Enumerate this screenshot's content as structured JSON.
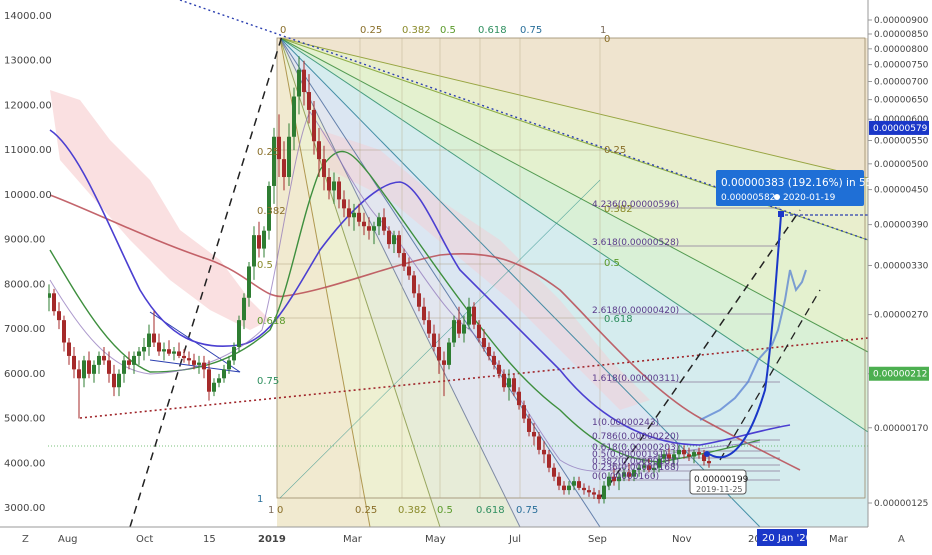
{
  "chart_data": {
    "type": "line",
    "title": "",
    "xlabel": "",
    "ylabel": "",
    "left_axis": {
      "ylim": [
        2700,
        14300
      ],
      "ticks": [
        "14000.00",
        "13000.00",
        "12000.00",
        "11000.00",
        "10000.00",
        "9000.00",
        "8000.00",
        "7000.00",
        "6000.00",
        "5000.00",
        "4000.00",
        "3000.00"
      ]
    },
    "right_axis": {
      "scale": "log",
      "ylim": [
        1.12e-06,
        9.3e-06
      ],
      "ticks": [
        "0.00000900",
        "0.00000850",
        "0.00000800",
        "0.00000750",
        "0.00000700",
        "0.00000650",
        "0.00000600",
        "0.00000550",
        "0.00000500",
        "0.00000450",
        "0.00000390",
        "0.00000330",
        "0.00000270",
        "0.00000212",
        "0.00000170",
        "0.00000125"
      ],
      "price_label": "0.00000579",
      "current_label": "0.00000212"
    },
    "x_ticks": [
      "Aug",
      "Oct",
      "15",
      "2019",
      "Mar",
      "May",
      "Jul",
      "Sep",
      "Nov",
      "20",
      "Mar"
    ],
    "x_highlight": "20 Jan '20",
    "fib_top_labels": [
      "0",
      "0.25",
      "0.382",
      "0.5",
      "0.618",
      "0.75",
      "1"
    ],
    "fib_bottom_labels": [
      "0",
      "0.25",
      "0.382",
      "0.5",
      "0.618",
      "0.75",
      "1"
    ],
    "fib_right_labels": [
      "0",
      "0.25",
      "0.382",
      "0.5",
      "0.618"
    ],
    "fib_left_labels": [
      "0.25",
      "0.382",
      "0.5",
      "0.618",
      "0.75",
      "1"
    ],
    "fib_ext_labels": [
      "4.236(0.00000596)",
      "3.618(0.00000528)",
      "2.618(0.00000420)",
      "1.618(0.00000311)",
      "1(0.00000243)",
      "0.786(0.00000220)",
      "0.618(0.00000203)",
      "0.5(0.00000191)",
      "0.382(0.00000181)",
      "0.236(0.00000168)",
      "0(0.00000160)"
    ],
    "measure_label": {
      "line1": "0.00000383 (192.16%) in 55d",
      "line2": "0.00000582",
      "line3": "2020-01-19"
    },
    "low_label": {
      "value": "0.00000199",
      "date": "2019-11-25"
    },
    "candles": [
      [
        44,
        7900,
        7950,
        7600,
        7700
      ],
      [
        49,
        7700,
        8000,
        7400,
        7800
      ],
      [
        54,
        7800,
        7900,
        7300,
        7400
      ],
      [
        59,
        7400,
        7600,
        7000,
        7200
      ],
      [
        64,
        7200,
        7300,
        6500,
        6700
      ],
      [
        69,
        6700,
        6800,
        6200,
        6400
      ],
      [
        74,
        6400,
        6600,
        5900,
        6100
      ],
      [
        79,
        6100,
        6300,
        5000,
        5900
      ],
      [
        84,
        5900,
        6400,
        5700,
        6300
      ],
      [
        89,
        6300,
        6500,
        5900,
        6000
      ],
      [
        94,
        6000,
        6300,
        5800,
        6200
      ],
      [
        99,
        6200,
        6500,
        6000,
        6400
      ],
      [
        104,
        6400,
        6600,
        6200,
        6300
      ],
      [
        109,
        6300,
        6500,
        5800,
        6000
      ],
      [
        114,
        6000,
        6200,
        5500,
        5700
      ],
      [
        119,
        5700,
        6100,
        5500,
        6000
      ],
      [
        124,
        6000,
        6400,
        5800,
        6300
      ],
      [
        129,
        6300,
        6500,
        6100,
        6200
      ],
      [
        134,
        6200,
        6500,
        6000,
        6400
      ],
      [
        139,
        6400,
        6600,
        6200,
        6500
      ],
      [
        144,
        6500,
        6800,
        6300,
        6600
      ],
      [
        149,
        6600,
        7100,
        6400,
        6900
      ],
      [
        154,
        6900,
        7400,
        6600,
        6700
      ],
      [
        159,
        6700,
        6900,
        6400,
        6500
      ],
      [
        164,
        6500,
        6700,
        6300,
        6550
      ],
      [
        169,
        6550,
        6750,
        6400,
        6450
      ],
      [
        174,
        6450,
        6600,
        6300,
        6500
      ],
      [
        179,
        6500,
        6700,
        6350,
        6400
      ],
      [
        184,
        6400,
        6550,
        6250,
        6350
      ],
      [
        189,
        6350,
        6500,
        6200,
        6300
      ],
      [
        194,
        6300,
        6450,
        6100,
        6200
      ],
      [
        199,
        6200,
        6400,
        6000,
        6250
      ],
      [
        204,
        6250,
        6400,
        5900,
        6100
      ],
      [
        209,
        6100,
        6300,
        5400,
        5600
      ],
      [
        214,
        5600,
        5900,
        5500,
        5800
      ],
      [
        219,
        5800,
        6000,
        5700,
        5900
      ],
      [
        224,
        5900,
        6200,
        5800,
        6100
      ],
      [
        229,
        6100,
        6400,
        6000,
        6300
      ],
      [
        234,
        6300,
        6700,
        6200,
        6600
      ],
      [
        239,
        6600,
        7300,
        6500,
        7200
      ],
      [
        244,
        7200,
        7800,
        7000,
        7700
      ],
      [
        249,
        7700,
        8500,
        7500,
        8400
      ],
      [
        254,
        8400,
        9300,
        8100,
        9100
      ],
      [
        259,
        9100,
        9400,
        8600,
        8800
      ],
      [
        264,
        8800,
        9300,
        8600,
        9200
      ],
      [
        269,
        9200,
        10300,
        9000,
        10200
      ],
      [
        274,
        10200,
        11500,
        9800,
        11300
      ],
      [
        279,
        11300,
        11800,
        10400,
        10800
      ],
      [
        284,
        10800,
        11200,
        10100,
        10400
      ],
      [
        289,
        10400,
        11600,
        10200,
        11300
      ],
      [
        294,
        11300,
        12400,
        11000,
        12200
      ],
      [
        299,
        12200,
        13100,
        11800,
        12800
      ],
      [
        304,
        12800,
        13000,
        12000,
        12300
      ],
      [
        309,
        12300,
        12700,
        11600,
        11900
      ],
      [
        314,
        11900,
        12100,
        10900,
        11200
      ],
      [
        319,
        11200,
        11500,
        10400,
        10800
      ],
      [
        324,
        10800,
        11100,
        10100,
        10400
      ],
      [
        329,
        10400,
        10600,
        9900,
        10100
      ],
      [
        334,
        10100,
        10500,
        9800,
        10300
      ],
      [
        339,
        10300,
        10400,
        9700,
        9900
      ],
      [
        344,
        9900,
        10100,
        9500,
        9700
      ],
      [
        349,
        9700,
        9900,
        9300,
        9500
      ],
      [
        354,
        9500,
        9800,
        9200,
        9600
      ],
      [
        359,
        9600,
        9800,
        9300,
        9400
      ],
      [
        364,
        9400,
        9600,
        9100,
        9300
      ],
      [
        369,
        9300,
        9500,
        9000,
        9200
      ],
      [
        374,
        9200,
        9400,
        8900,
        9300
      ],
      [
        379,
        9300,
        9600,
        9100,
        9500
      ],
      [
        384,
        9500,
        9700,
        9100,
        9200
      ],
      [
        389,
        9200,
        9300,
        8800,
        8900
      ],
      [
        394,
        8900,
        9200,
        8700,
        9100
      ],
      [
        399,
        9100,
        9200,
        8600,
        8700
      ],
      [
        404,
        8700,
        8800,
        8300,
        8400
      ],
      [
        409,
        8400,
        8600,
        8100,
        8200
      ],
      [
        414,
        8200,
        8300,
        7700,
        7800
      ],
      [
        419,
        7800,
        8000,
        7400,
        7500
      ],
      [
        424,
        7500,
        7700,
        7100,
        7200
      ],
      [
        429,
        7200,
        7400,
        6800,
        6900
      ],
      [
        434,
        6900,
        7100,
        6500,
        6600
      ],
      [
        439,
        6600,
        6900,
        6000,
        6300
      ],
      [
        444,
        6300,
        6500,
        5500,
        6200
      ],
      [
        449,
        6200,
        6800,
        6100,
        6700
      ],
      [
        454,
        6700,
        7300,
        6600,
        7200
      ],
      [
        459,
        7200,
        7500,
        6800,
        6900
      ],
      [
        464,
        6900,
        7300,
        6700,
        7100
      ],
      [
        469,
        7100,
        7700,
        7000,
        7500
      ],
      [
        474,
        7500,
        7600,
        7000,
        7100
      ],
      [
        479,
        7100,
        7200,
        6700,
        6800
      ],
      [
        484,
        6800,
        7000,
        6500,
        6600
      ],
      [
        489,
        6600,
        6700,
        6300,
        6400
      ],
      [
        494,
        6400,
        6500,
        6100,
        6200
      ],
      [
        499,
        6200,
        6300,
        5900,
        6000
      ],
      [
        504,
        6000,
        6100,
        5600,
        5700
      ],
      [
        509,
        5700,
        6100,
        5400,
        5900
      ],
      [
        514,
        5900,
        6000,
        5500,
        5600
      ],
      [
        519,
        5600,
        5700,
        5200,
        5300
      ],
      [
        524,
        5300,
        5400,
        4900,
        5000
      ],
      [
        529,
        5000,
        5100,
        4600,
        4700
      ],
      [
        534,
        4700,
        4900,
        4400,
        4600
      ],
      [
        539,
        4600,
        4700,
        4200,
        4300
      ],
      [
        544,
        4300,
        4500,
        4000,
        4200
      ],
      [
        549,
        4200,
        4300,
        3800,
        3900
      ],
      [
        554,
        3900,
        4000,
        3600,
        3700
      ],
      [
        559,
        3700,
        3800,
        3400,
        3500
      ],
      [
        564,
        3500,
        3600,
        3300,
        3400
      ],
      [
        569,
        3400,
        3600,
        3300,
        3500
      ],
      [
        574,
        3500,
        3700,
        3400,
        3600
      ],
      [
        579,
        3600,
        3700,
        3400,
        3450
      ],
      [
        584,
        3450,
        3550,
        3300,
        3400
      ],
      [
        589,
        3400,
        3500,
        3250,
        3350
      ],
      [
        594,
        3350,
        3450,
        3200,
        3300
      ],
      [
        599,
        3300,
        3400,
        3100,
        3200
      ],
      [
        604,
        3200,
        3600,
        3100,
        3500
      ],
      [
        609,
        3500,
        3800,
        3400,
        3700
      ],
      [
        614,
        3700,
        3900,
        3500,
        3600
      ],
      [
        619,
        3600,
        3800,
        3400,
        3700
      ],
      [
        624,
        3700,
        3900,
        3600,
        3800
      ],
      [
        629,
        3800,
        4000,
        3600,
        3700
      ],
      [
        634,
        3700,
        3900,
        3600,
        3850
      ],
      [
        639,
        3850,
        4000,
        3700,
        3900
      ],
      [
        644,
        3900,
        4100,
        3800,
        3950
      ],
      [
        649,
        3950,
        4100,
        3800,
        3850
      ],
      [
        654,
        3850,
        4000,
        3700,
        3900
      ],
      [
        659,
        3900,
        4200,
        3800,
        4100
      ],
      [
        664,
        4100,
        4300,
        4000,
        4200
      ],
      [
        669,
        4200,
        4400,
        4000,
        4100
      ],
      [
        674,
        4100,
        4300,
        3900,
        4200
      ],
      [
        679,
        4200,
        4400,
        4100,
        4300
      ],
      [
        684,
        4300,
        4400,
        4100,
        4200
      ],
      [
        689,
        4200,
        4350,
        4050,
        4150
      ],
      [
        694,
        4150,
        4300,
        4000,
        4250
      ],
      [
        699,
        4250,
        4350,
        4100,
        4200
      ],
      [
        704,
        4200,
        4300,
        3950,
        4050
      ],
      [
        709,
        4050,
        4200,
        3900,
        4000
      ]
    ]
  }
}
